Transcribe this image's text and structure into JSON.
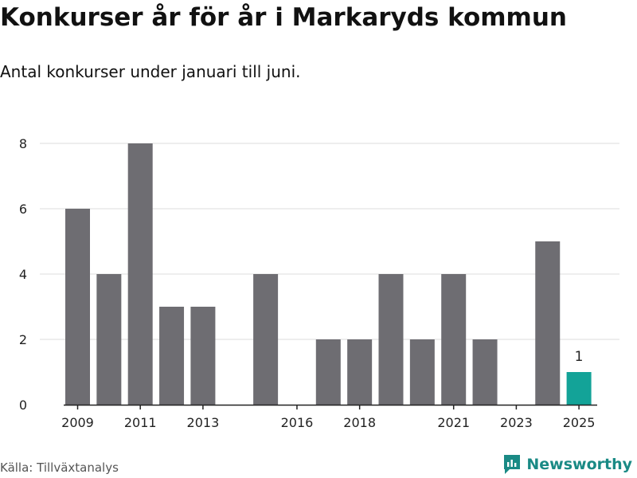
{
  "header": {
    "title": "Konkurser år för år i Markaryds kommun",
    "subtitle": "Antal konkurser under januari till juni."
  },
  "footer": {
    "source": "Källa: Tillväxtanalys",
    "brand": "Newsworthy",
    "brand_icon": "newsworthy-logo-icon"
  },
  "colors": {
    "bar": "#6e6d72",
    "highlight": "#13a398",
    "grid": "#dddddd",
    "text": "#222222",
    "brand": "#1a8a85"
  },
  "chart_data": {
    "type": "bar",
    "title": "Konkurser år för år i Markaryds kommun",
    "subtitle": "Antal konkurser under januari till juni.",
    "xlabel": "",
    "ylabel": "",
    "categories": [
      "2009",
      "2010",
      "2011",
      "2012",
      "2013",
      "2014",
      "2015",
      "2016",
      "2017",
      "2018",
      "2019",
      "2020",
      "2021",
      "2022",
      "2023",
      "2024",
      "2025"
    ],
    "values": [
      6,
      4,
      8,
      3,
      3,
      0,
      4,
      0,
      2,
      2,
      4,
      2,
      4,
      2,
      0,
      5,
      1
    ],
    "highlight_category": "2025",
    "data_labels": [
      {
        "category": "2025",
        "text": "1"
      }
    ],
    "x_tick_labels": [
      "2009",
      "2011",
      "2013",
      "2016",
      "2018",
      "2021",
      "2023",
      "2025"
    ],
    "y_ticks": [
      0,
      2,
      4,
      6,
      8
    ],
    "ylim": [
      0,
      8
    ],
    "grid": true,
    "legend": "none"
  }
}
